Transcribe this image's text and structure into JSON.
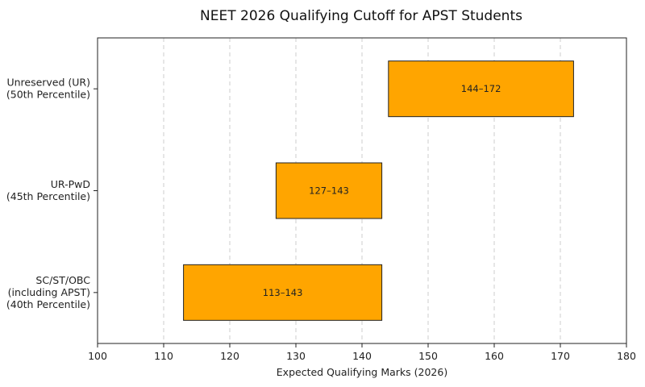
{
  "chart_data": {
    "type": "bar",
    "orientation": "horizontal-range",
    "title": "NEET 2026 Qualifying Cutoff for APST Students",
    "xlabel": "Expected Qualifying Marks (2026)",
    "ylabel": "",
    "xlim": [
      100,
      180
    ],
    "xticks": [
      100,
      110,
      120,
      130,
      140,
      150,
      160,
      170,
      180
    ],
    "grid": "x-dashed",
    "color": "#FFA500",
    "categories": [
      {
        "lines": [
          "Unreserved (UR)",
          "(50th Percentile)"
        ]
      },
      {
        "lines": [
          "UR-PwD",
          "(45th Percentile)"
        ]
      },
      {
        "lines": [
          "SC/ST/OBC",
          "(including APST)",
          "(40th Percentile)"
        ]
      }
    ],
    "ranges": [
      {
        "start": 144,
        "end": 172,
        "label": "144–172"
      },
      {
        "start": 127,
        "end": 143,
        "label": "127–143"
      },
      {
        "start": 113,
        "end": 143,
        "label": "113–143"
      }
    ]
  }
}
